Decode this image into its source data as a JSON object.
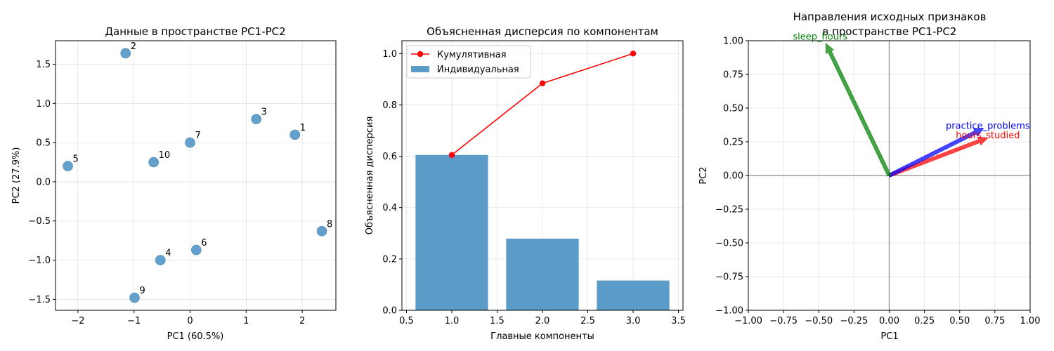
{
  "chart_data": [
    {
      "type": "scatter",
      "title": "Данные в пространстве PC1-PC2",
      "xlabel": "PC1 (60.5%)",
      "ylabel": "PC2 (27.9%)",
      "xlim": [
        -2.4,
        2.6
      ],
      "ylim": [
        -1.64,
        1.8
      ],
      "xticks": [
        -2,
        -1,
        0,
        1,
        2
      ],
      "yticks": [
        -1.5,
        -1.0,
        -0.5,
        0.0,
        0.5,
        1.0,
        1.5
      ],
      "tick_format": {
        "x": "int",
        "y": "fixed1"
      },
      "grid": true,
      "marker_color": "#5b9bc8",
      "points": [
        {
          "label": "1",
          "x": 1.87,
          "y": 0.6
        },
        {
          "label": "2",
          "x": -1.15,
          "y": 1.64
        },
        {
          "label": "3",
          "x": 1.18,
          "y": 0.8
        },
        {
          "label": "4",
          "x": -0.53,
          "y": -1.0
        },
        {
          "label": "5",
          "x": -2.18,
          "y": 0.2
        },
        {
          "label": "6",
          "x": 0.11,
          "y": -0.87
        },
        {
          "label": "7",
          "x": 0.0,
          "y": 0.5
        },
        {
          "label": "8",
          "x": 2.35,
          "y": -0.63
        },
        {
          "label": "9",
          "x": -0.99,
          "y": -1.48
        },
        {
          "label": "10",
          "x": -0.65,
          "y": 0.25
        }
      ]
    },
    {
      "type": "bar",
      "title": "Объясненная дисперсия по компонентам",
      "xlabel": "Главные компоненты",
      "ylabel": "Объясненная дисперсия",
      "xlim": [
        0.45,
        3.55
      ],
      "ylim": [
        0,
        1.05
      ],
      "xticks": [
        0.5,
        1.0,
        1.5,
        2.0,
        2.5,
        3.0,
        3.5
      ],
      "yticks": [
        0.0,
        0.2,
        0.4,
        0.6,
        0.8,
        1.0
      ],
      "tick_format": {
        "x": "fixed1",
        "y": "fixed1"
      },
      "grid": true,
      "legend": "top-left",
      "categories": [
        1,
        2,
        3
      ],
      "bar_width": 0.8,
      "series": [
        {
          "name": "Индивидуальная",
          "kind": "bar",
          "color": "#5b9bc8",
          "values": [
            0.605,
            0.279,
            0.116
          ]
        },
        {
          "name": "Кумулятивная",
          "kind": "line",
          "color": "#ff0000",
          "values": [
            0.605,
            0.884,
            1.0
          ]
        }
      ]
    },
    {
      "type": "biplot",
      "title_lines": [
        "Направления исходных признаков",
        "в пространстве PC1-PC2"
      ],
      "xlabel": "PC1",
      "ylabel": "PC2",
      "xlim": [
        -1.0,
        1.0
      ],
      "ylim": [
        -1.0,
        1.0
      ],
      "xticks": [
        -1.0,
        -0.75,
        -0.5,
        -0.25,
        0.0,
        0.25,
        0.5,
        0.75,
        1.0
      ],
      "yticks": [
        -1.0,
        -0.75,
        -0.5,
        -0.25,
        0.0,
        0.25,
        0.5,
        0.75,
        1.0
      ],
      "tick_format": {
        "x": "fixed2",
        "y": "fixed2"
      },
      "grid": true,
      "vectors": [
        {
          "name": "hours_studied",
          "color": "#ff0000",
          "x": 0.7,
          "y": 0.28,
          "label_x": 0.7,
          "label_y": 0.3
        },
        {
          "name": "practice_problems",
          "color": "#0000ff",
          "x": 0.67,
          "y": 0.35,
          "label_x": 0.7,
          "label_y": 0.37
        },
        {
          "name": "sleep_hours",
          "color": "#008000",
          "x": -0.45,
          "y": 0.98,
          "label_x": -0.49,
          "label_y": 1.03
        }
      ]
    }
  ]
}
